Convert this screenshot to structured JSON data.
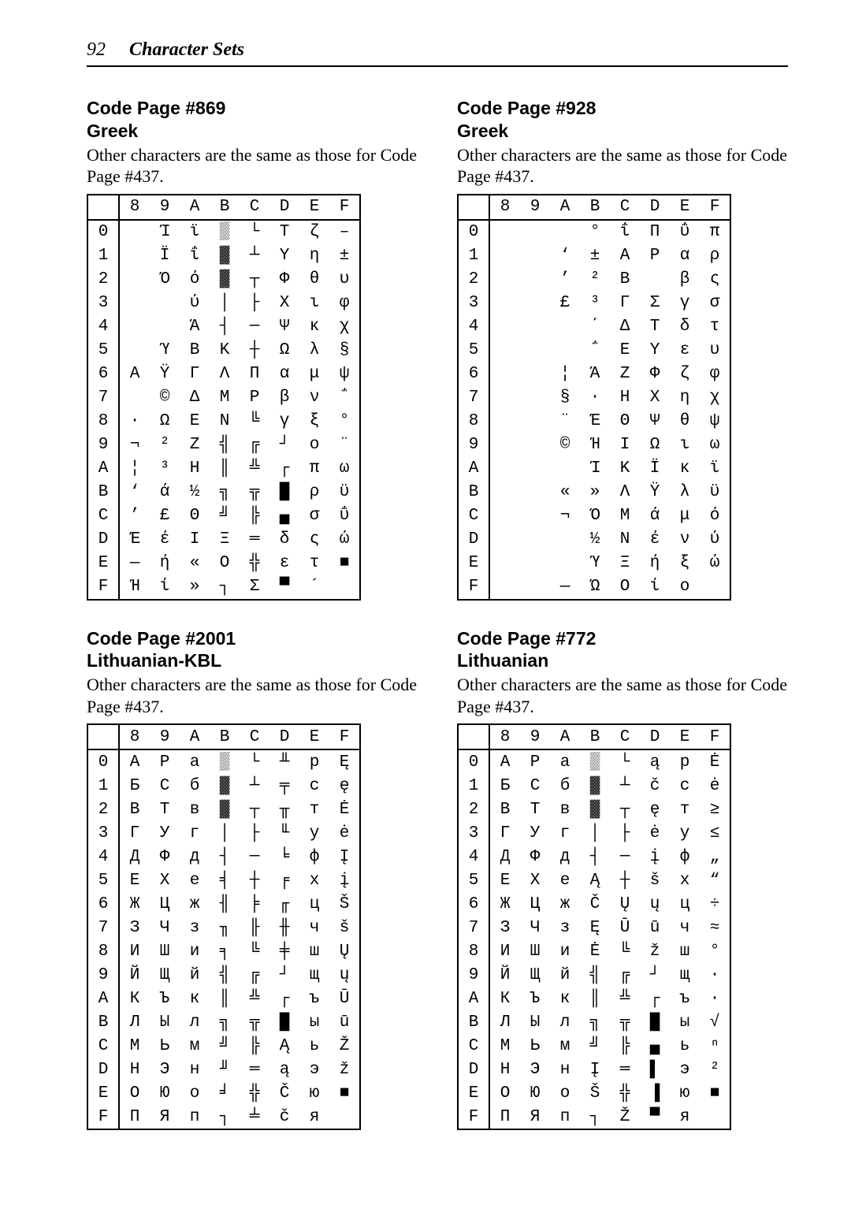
{
  "page": {
    "number": "92",
    "title": "Character Sets"
  },
  "common_desc_prefix": "Other characters are the same as those for Code Page #437.",
  "col_headers": [
    "8",
    "9",
    "A",
    "B",
    "C",
    "D",
    "E",
    "F"
  ],
  "row_headers": [
    "0",
    "1",
    "2",
    "3",
    "4",
    "5",
    "6",
    "7",
    "8",
    "9",
    "A",
    "B",
    "C",
    "D",
    "E",
    "F"
  ],
  "blocks": {
    "cp869": {
      "title1": "Code Page #869",
      "title2": "Greek",
      "rows": [
        [
          "",
          "Ί",
          "ϊ",
          "▒",
          "└",
          "Τ",
          "ζ",
          "–"
        ],
        [
          "",
          "Ϊ",
          "ΐ",
          "▓",
          "┴",
          "Υ",
          "η",
          "±"
        ],
        [
          "",
          "Ό",
          "ό",
          "▓",
          "┬",
          "Φ",
          "θ",
          "υ"
        ],
        [
          "",
          "",
          "ύ",
          "│",
          "├",
          "Χ",
          "ι",
          "φ"
        ],
        [
          "",
          "",
          "Ά",
          "┤",
          "─",
          "Ψ",
          "κ",
          "χ"
        ],
        [
          "",
          "Ύ",
          "Β",
          "Κ",
          "┼",
          "Ω",
          "λ",
          "§"
        ],
        [
          "Α",
          "Ϋ",
          "Γ",
          "Λ",
          "Π",
          "α",
          "μ",
          "ψ"
        ],
        [
          "",
          "©",
          "Δ",
          "Μ",
          "Ρ",
          "β",
          "ν",
          "΅"
        ],
        [
          "·",
          "Ω",
          "Ε",
          "Ν",
          "╚",
          "γ",
          "ξ",
          "°"
        ],
        [
          "¬",
          "²",
          "Ζ",
          "╣",
          "╔",
          "┘",
          "ο",
          "¨"
        ],
        [
          "¦",
          "³",
          "Η",
          "║",
          "╩",
          "┌",
          "π",
          "ω"
        ],
        [
          "‘",
          "ά",
          "½",
          "╗",
          "╦",
          "█",
          "ρ",
          "ϋ"
        ],
        [
          "’",
          "£",
          "Θ",
          "╝",
          "╠",
          "▄",
          "σ",
          "ΰ"
        ],
        [
          "Έ",
          "έ",
          "Ι",
          "Ξ",
          "═",
          "δ",
          "ς",
          "ώ"
        ],
        [
          "―",
          "ή",
          "«",
          "Ο",
          "╬",
          "ε",
          "τ",
          "■"
        ],
        [
          "Ή",
          "ί",
          "»",
          "┐",
          "Σ",
          "▀",
          "´",
          ""
        ]
      ]
    },
    "cp928": {
      "title1": "Code Page #928",
      "title2": "Greek",
      "rows": [
        [
          "",
          "",
          "",
          "°",
          "ΐ",
          "Π",
          "ΰ",
          "π"
        ],
        [
          "",
          "",
          "‘",
          "±",
          "Α",
          "Ρ",
          "α",
          "ρ"
        ],
        [
          "",
          "",
          "’",
          "²",
          "Β",
          "",
          "β",
          "ς"
        ],
        [
          "",
          "",
          "£",
          "³",
          "Γ",
          "Σ",
          "γ",
          "σ"
        ],
        [
          "",
          "",
          "",
          "΄",
          "Δ",
          "Τ",
          "δ",
          "τ"
        ],
        [
          "",
          "",
          "",
          "΅",
          "Ε",
          "Υ",
          "ε",
          "υ"
        ],
        [
          "",
          "",
          "¦",
          "Ά",
          "Ζ",
          "Φ",
          "ζ",
          "φ"
        ],
        [
          "",
          "",
          "§",
          "·",
          "Η",
          "Χ",
          "η",
          "χ"
        ],
        [
          "",
          "",
          "¨",
          "Έ",
          "Θ",
          "Ψ",
          "θ",
          "ψ"
        ],
        [
          "",
          "",
          "©",
          "Ή",
          "Ι",
          "Ω",
          "ι",
          "ω"
        ],
        [
          "",
          "",
          "",
          "Ί",
          "Κ",
          "Ϊ",
          "κ",
          "ϊ"
        ],
        [
          "",
          "",
          "«",
          "»",
          "Λ",
          "Ϋ",
          "λ",
          "ϋ"
        ],
        [
          "",
          "",
          "¬",
          "Ό",
          "Μ",
          "ά",
          "μ",
          "ό"
        ],
        [
          "",
          "",
          "­",
          "½",
          "Ν",
          "έ",
          "ν",
          "ύ"
        ],
        [
          "",
          "",
          "",
          "Ύ",
          "Ξ",
          "ή",
          "ξ",
          "ώ"
        ],
        [
          "",
          "",
          "―",
          "Ώ",
          "Ο",
          "ί",
          "ο",
          ""
        ]
      ]
    },
    "cp2001": {
      "title1": "Code Page #2001",
      "title2": "Lithuanian-KBL",
      "rows": [
        [
          "А",
          "Р",
          "а",
          "▒",
          "└",
          "╨",
          "р",
          "Ę"
        ],
        [
          "Б",
          "С",
          "б",
          "▓",
          "┴",
          "╤",
          "с",
          "ę"
        ],
        [
          "В",
          "Т",
          "в",
          "▓",
          "┬",
          "╥",
          "т",
          "Ė"
        ],
        [
          "Г",
          "У",
          "г",
          "│",
          "├",
          "╙",
          "у",
          "ė"
        ],
        [
          "Д",
          "Ф",
          "д",
          "┤",
          "─",
          "╘",
          "ф",
          "Į"
        ],
        [
          "Е",
          "Х",
          "е",
          "╡",
          "┼",
          "╒",
          "х",
          "į"
        ],
        [
          "Ж",
          "Ц",
          "ж",
          "╢",
          "╞",
          "╓",
          "ц",
          "Š"
        ],
        [
          "З",
          "Ч",
          "з",
          "╖",
          "╟",
          "╫",
          "ч",
          "š"
        ],
        [
          "И",
          "Ш",
          "и",
          "╕",
          "╚",
          "╪",
          "ш",
          "Ų"
        ],
        [
          "Й",
          "Щ",
          "й",
          "╣",
          "╔",
          "┘",
          "щ",
          "ų"
        ],
        [
          "К",
          "Ъ",
          "к",
          "║",
          "╩",
          "┌",
          "ъ",
          "Ū"
        ],
        [
          "Л",
          "Ы",
          "л",
          "╗",
          "╦",
          "█",
          "ы",
          "ū"
        ],
        [
          "М",
          "Ь",
          "м",
          "╝",
          "╠",
          "Ą",
          "ь",
          "Ž"
        ],
        [
          "Н",
          "Э",
          "н",
          "╜",
          "═",
          "ą",
          "э",
          "ž"
        ],
        [
          "О",
          "Ю",
          "о",
          "╛",
          "╬",
          "Č",
          "ю",
          "■"
        ],
        [
          "П",
          "Я",
          "п",
          "┐",
          "╧",
          "č",
          "я",
          ""
        ]
      ]
    },
    "cp772": {
      "title1": "Code Page #772",
      "title2": "Lithuanian",
      "rows": [
        [
          "А",
          "Р",
          "а",
          "▒",
          "└",
          "ą",
          "р",
          "Ė"
        ],
        [
          "Б",
          "С",
          "б",
          "▓",
          "┴",
          "č",
          "с",
          "ė"
        ],
        [
          "В",
          "Т",
          "в",
          "▓",
          "┬",
          "ę",
          "т",
          "≥"
        ],
        [
          "Г",
          "У",
          "г",
          "│",
          "├",
          "ė",
          "у",
          "≤"
        ],
        [
          "Д",
          "Ф",
          "д",
          "┤",
          "─",
          "į",
          "ф",
          "„"
        ],
        [
          "Е",
          "Х",
          "е",
          "Ą",
          "┼",
          "š",
          "х",
          "“"
        ],
        [
          "Ж",
          "Ц",
          "ж",
          "Č",
          "Ų",
          "ų",
          "ц",
          "÷"
        ],
        [
          "З",
          "Ч",
          "з",
          "Ę",
          "Ū",
          "ū",
          "ч",
          "≈"
        ],
        [
          "И",
          "Ш",
          "и",
          "Ė",
          "╚",
          "ž",
          "ш",
          "°"
        ],
        [
          "Й",
          "Щ",
          "й",
          "╣",
          "╔",
          "┘",
          "щ",
          "∙"
        ],
        [
          "К",
          "Ъ",
          "к",
          "║",
          "╩",
          "┌",
          "ъ",
          "·"
        ],
        [
          "Л",
          "Ы",
          "л",
          "╗",
          "╦",
          "█",
          "ы",
          "√"
        ],
        [
          "М",
          "Ь",
          "м",
          "╝",
          "╠",
          "▄",
          "ь",
          "ⁿ"
        ],
        [
          "Н",
          "Э",
          "н",
          "Į",
          "═",
          "▌",
          "э",
          "²"
        ],
        [
          "О",
          "Ю",
          "о",
          "Š",
          "╬",
          "▐",
          "ю",
          "■"
        ],
        [
          "П",
          "Я",
          "п",
          "┐",
          "Ž",
          "▀",
          "я",
          ""
        ]
      ]
    }
  }
}
